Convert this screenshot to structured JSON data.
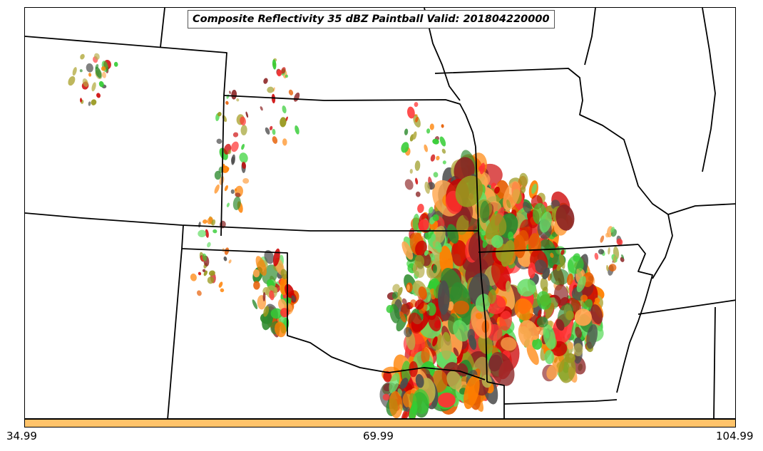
{
  "title": "Composite Reflectivity 35 dBZ Paintball Valid: 201804220000",
  "colorbar": {
    "color": "#FFC36A",
    "tick_labels": [
      "34.99",
      "69.99",
      "104.99"
    ]
  },
  "map": {
    "boundary_color": "#000000",
    "paintball_colors": [
      "#FF3333",
      "#FF8000",
      "#33CC33",
      "#FFA64D",
      "#99991F",
      "#8B2323",
      "#2E8B2E",
      "#4D4D4D",
      "#CC0000",
      "#66DD66",
      "#B8B04D",
      "#E65C00"
    ]
  }
}
